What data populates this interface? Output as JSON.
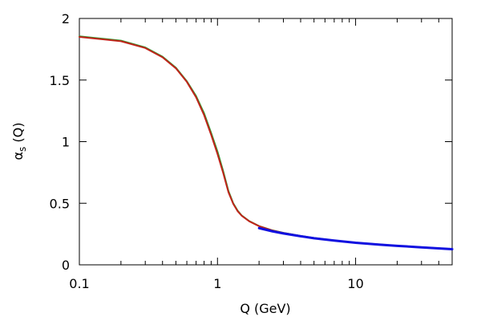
{
  "chart_data": {
    "type": "line",
    "title": "",
    "xlabel": "Q (GeV)",
    "ylabel": {
      "symbol": "α",
      "subscript": "s",
      "suffix": " (Q)"
    },
    "x_scale": "log",
    "xlim": [
      0.1,
      50
    ],
    "ylim": [
      0,
      2
    ],
    "x_ticks": [
      {
        "value": 0.1,
        "label": "0.1"
      },
      {
        "value": 1,
        "label": "1"
      },
      {
        "value": 10,
        "label": "10"
      }
    ],
    "y_ticks": [
      {
        "value": 0,
        "label": "0"
      },
      {
        "value": 0.5,
        "label": "0.5"
      },
      {
        "value": 1,
        "label": "1"
      },
      {
        "value": 1.5,
        "label": "1.5"
      },
      {
        "value": 2,
        "label": "2"
      }
    ],
    "grid": false,
    "legend": "none",
    "series": [
      {
        "color": "#2e9a2e",
        "x": [
          0.1,
          0.2,
          0.3,
          0.4,
          0.5,
          0.6,
          0.7,
          0.8,
          0.9,
          1.0,
          1.1,
          1.2,
          1.3,
          1.4,
          1.5,
          1.7,
          2.0,
          2.5,
          3.0,
          4.0,
          5.0,
          7.0,
          10.0,
          15.0,
          20.0,
          30.0,
          50.0
        ],
        "y": [
          1.855,
          1.82,
          1.765,
          1.69,
          1.6,
          1.49,
          1.37,
          1.23,
          1.07,
          0.92,
          0.76,
          0.6,
          0.5,
          0.44,
          0.4,
          0.355,
          0.315,
          0.28,
          0.26,
          0.235,
          0.218,
          0.198,
          0.18,
          0.165,
          0.155,
          0.143,
          0.128
        ]
      },
      {
        "color": "#c0241b",
        "x": [
          0.1,
          0.2,
          0.3,
          0.4,
          0.5,
          0.6,
          0.7,
          0.8,
          0.9,
          1.0,
          1.1,
          1.2,
          1.3,
          1.4,
          1.5,
          1.7,
          2.0,
          2.5,
          3.0,
          4.0,
          5.0,
          7.0,
          10.0,
          15.0,
          20.0,
          30.0,
          50.0
        ],
        "y": [
          1.85,
          1.815,
          1.76,
          1.685,
          1.595,
          1.485,
          1.36,
          1.215,
          1.055,
          0.9,
          0.745,
          0.59,
          0.495,
          0.435,
          0.398,
          0.353,
          0.314,
          0.279,
          0.259,
          0.234,
          0.217,
          0.197,
          0.179,
          0.164,
          0.154,
          0.142,
          0.127
        ]
      },
      {
        "color": "#1010e0",
        "x": [
          2.0,
          2.5,
          3.0,
          4.0,
          5.0,
          7.0,
          10.0,
          15.0,
          20.0,
          30.0,
          50.0
        ],
        "y": [
          0.298,
          0.272,
          0.255,
          0.232,
          0.216,
          0.197,
          0.179,
          0.164,
          0.154,
          0.142,
          0.127
        ]
      }
    ]
  }
}
